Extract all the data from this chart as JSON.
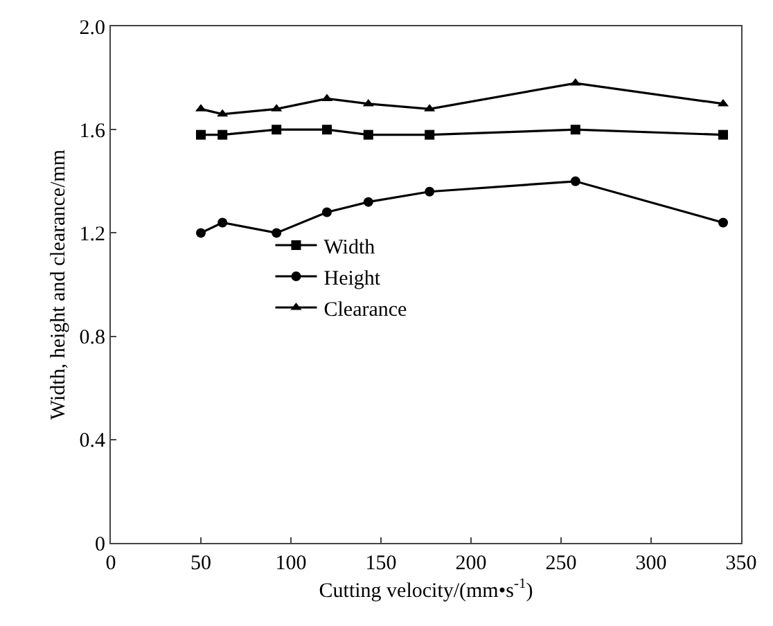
{
  "chart_data": {
    "type": "line",
    "xlabel": "Cutting velocity/(mm•s$^{-1}$)",
    "ylabel": "Width, height and clearance/mm",
    "x": [
      50,
      62,
      92,
      120,
      143,
      177,
      258,
      340
    ],
    "series": [
      {
        "name": "Width",
        "color": "#000000",
        "marker": "square",
        "values": [
          1.58,
          1.58,
          1.6,
          1.6,
          1.58,
          1.58,
          1.6,
          1.58
        ]
      },
      {
        "name": "Height",
        "color": "#000000",
        "marker": "circle",
        "values": [
          1.2,
          1.24,
          1.2,
          1.28,
          1.32,
          1.36,
          1.4,
          1.24
        ]
      },
      {
        "name": "Clearance",
        "color": "#000000",
        "marker": "triangle",
        "values": [
          1.68,
          1.66,
          1.68,
          1.72,
          1.7,
          1.68,
          1.78,
          1.7
        ]
      }
    ],
    "xlim": [
      0,
      350
    ],
    "xticks": [
      0,
      50,
      100,
      150,
      200,
      250,
      300,
      350
    ],
    "ylim": [
      0,
      2.0
    ],
    "yticks": [
      0,
      {
        "value": 0.4,
        "label": "0.4"
      },
      {
        "value": 0.8,
        "label": "0.8"
      },
      {
        "value": 1.2,
        "label": "1.2"
      },
      {
        "value": 1.6,
        "label": "1.6"
      },
      {
        "value": 2.0,
        "label": "2.0"
      }
    ],
    "legend": "center",
    "line_style": "solid"
  }
}
